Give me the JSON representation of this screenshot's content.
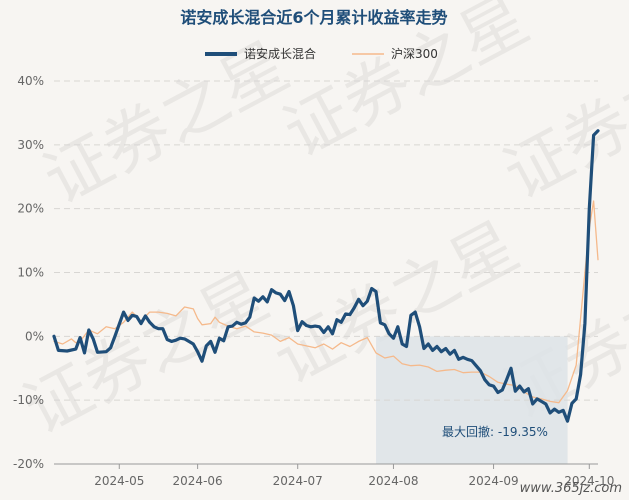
{
  "chart_data": {
    "type": "line",
    "title": "诺安成长混合近6个月累计收益率走势",
    "xlabel": "",
    "ylabel": "",
    "x_ticks": [
      "2024-05",
      "2024-06",
      "2024-07",
      "2024-08",
      "2024-09",
      "2024-10"
    ],
    "y_ticks": [
      "40%",
      "30%",
      "20%",
      "10%",
      "0%",
      "-10%",
      "-20%"
    ],
    "ylim": [
      -20,
      40
    ],
    "legend_position": "top-center",
    "grid": true,
    "colors": {
      "fund": "#1f4e79",
      "index": "#f5b98b",
      "drawdown": "#dde3e8",
      "grid": "#d8d6d3"
    },
    "series": [
      {
        "name": "诺安成长混合",
        "points": [
          [
            0,
            0
          ],
          [
            1,
            -2.2
          ],
          [
            3,
            -2.3
          ],
          [
            5,
            -2
          ],
          [
            6,
            -0.2
          ],
          [
            7,
            -2.6
          ],
          [
            8,
            1
          ],
          [
            9,
            -0.4
          ],
          [
            10,
            -2.5
          ],
          [
            12,
            -2.4
          ],
          [
            13,
            -1.8
          ],
          [
            14,
            0
          ],
          [
            16,
            3.8
          ],
          [
            17,
            2.5
          ],
          [
            18,
            3.3
          ],
          [
            19,
            3.1
          ],
          [
            20,
            2
          ],
          [
            21,
            3.2
          ],
          [
            22,
            2.2
          ],
          [
            23,
            1.5
          ],
          [
            24,
            1.2
          ],
          [
            25,
            1.2
          ],
          [
            26,
            -0.5
          ],
          [
            27,
            -0.8
          ],
          [
            28,
            -0.6
          ],
          [
            29,
            -0.3
          ],
          [
            30,
            -0.4
          ],
          [
            31,
            -0.8
          ],
          [
            32,
            -1.2
          ],
          [
            33,
            -2.4
          ],
          [
            34,
            -3.9
          ],
          [
            35,
            -1.5
          ],
          [
            36,
            -0.8
          ],
          [
            37,
            -2.5
          ],
          [
            38,
            -0.3
          ],
          [
            39,
            -0.7
          ],
          [
            40,
            1.5
          ],
          [
            41,
            1.6
          ],
          [
            42,
            2.2
          ],
          [
            43,
            1.9
          ],
          [
            44,
            2.1
          ],
          [
            45,
            3
          ],
          [
            46,
            6
          ],
          [
            47,
            5.5
          ],
          [
            48,
            6.2
          ],
          [
            49,
            5.4
          ],
          [
            50,
            7.3
          ],
          [
            51,
            6.8
          ],
          [
            52,
            6.6
          ],
          [
            53,
            5.6
          ],
          [
            54,
            7
          ],
          [
            55,
            4.8
          ],
          [
            56,
            0.9
          ],
          [
            57,
            2.3
          ],
          [
            58,
            1.7
          ],
          [
            59,
            1.5
          ],
          [
            60,
            1.6
          ],
          [
            61,
            1.5
          ],
          [
            62,
            0.6
          ],
          [
            63,
            1.5
          ],
          [
            64,
            0.4
          ],
          [
            65,
            2.6
          ],
          [
            66,
            2.2
          ],
          [
            67,
            3.5
          ],
          [
            68,
            3.4
          ],
          [
            69,
            4.5
          ],
          [
            70,
            5.8
          ],
          [
            71,
            4.8
          ],
          [
            72,
            5.5
          ],
          [
            73,
            7.5
          ],
          [
            74,
            7
          ],
          [
            75,
            2.1
          ],
          [
            76,
            1.8
          ],
          [
            77,
            0.4
          ],
          [
            78,
            -0.3
          ],
          [
            79,
            1.5
          ],
          [
            80,
            -1.2
          ],
          [
            81,
            -1.6
          ],
          [
            82,
            3.3
          ],
          [
            83,
            3.8
          ],
          [
            84,
            1.5
          ],
          [
            85,
            -1.9
          ],
          [
            86,
            -1.2
          ],
          [
            87,
            -2.2
          ],
          [
            88,
            -1.6
          ],
          [
            89,
            -2.4
          ],
          [
            90,
            -1.9
          ],
          [
            91,
            -2.8
          ],
          [
            92,
            -2.2
          ],
          [
            93,
            -3.6
          ],
          [
            94,
            -3.3
          ],
          [
            95,
            -3.6
          ],
          [
            96,
            -3.8
          ],
          [
            97,
            -4.6
          ],
          [
            98,
            -5.4
          ],
          [
            99,
            -6.8
          ],
          [
            100,
            -7.6
          ],
          [
            101,
            -7.8
          ],
          [
            102,
            -8.8
          ],
          [
            103,
            -8.4
          ],
          [
            104,
            -6.8
          ],
          [
            105,
            -5
          ],
          [
            106,
            -8.6
          ],
          [
            107,
            -7.8
          ],
          [
            108,
            -8.7
          ],
          [
            109,
            -8.2
          ],
          [
            110,
            -10.6
          ],
          [
            111,
            -9.8
          ],
          [
            112,
            -10.2
          ],
          [
            113,
            -10.6
          ],
          [
            114,
            -12
          ],
          [
            115,
            -11.4
          ],
          [
            116,
            -11.9
          ],
          [
            117,
            -11.6
          ],
          [
            118,
            -13.3
          ],
          [
            119,
            -10.5
          ],
          [
            120,
            -9.8
          ],
          [
            121,
            -6
          ],
          [
            122,
            2
          ],
          [
            123,
            20
          ],
          [
            124,
            31.5
          ],
          [
            125,
            32.2
          ]
        ]
      },
      {
        "name": "沪深300",
        "points": [
          [
            0,
            -0.8
          ],
          [
            2,
            -1.2
          ],
          [
            4,
            -0.4
          ],
          [
            5,
            -1
          ],
          [
            6,
            -0.8
          ],
          [
            8,
            1
          ],
          [
            10,
            0.4
          ],
          [
            12,
            1.5
          ],
          [
            14,
            1.2
          ],
          [
            16,
            2.2
          ],
          [
            18,
            3.8
          ],
          [
            20,
            2.4
          ],
          [
            22,
            3.8
          ],
          [
            24,
            3.8
          ],
          [
            26,
            3.6
          ],
          [
            28,
            3.2
          ],
          [
            30,
            4.6
          ],
          [
            32,
            4.3
          ],
          [
            33,
            2.8
          ],
          [
            34,
            1.8
          ],
          [
            36,
            2
          ],
          [
            37,
            3
          ],
          [
            38,
            2.2
          ],
          [
            40,
            1.6
          ],
          [
            42,
            1.2
          ],
          [
            44,
            1.6
          ],
          [
            46,
            0.7
          ],
          [
            48,
            0.5
          ],
          [
            50,
            0.2
          ],
          [
            52,
            -0.8
          ],
          [
            54,
            -0.2
          ],
          [
            56,
            -1.2
          ],
          [
            58,
            -1.5
          ],
          [
            60,
            -1.8
          ],
          [
            62,
            -1.2
          ],
          [
            64,
            -2
          ],
          [
            66,
            -1
          ],
          [
            68,
            -1.6
          ],
          [
            70,
            -0.8
          ],
          [
            72,
            -0.2
          ],
          [
            74,
            -2.6
          ],
          [
            76,
            -3.4
          ],
          [
            78,
            -3.1
          ],
          [
            80,
            -4.3
          ],
          [
            82,
            -4.6
          ],
          [
            84,
            -4.5
          ],
          [
            86,
            -4.8
          ],
          [
            88,
            -5.5
          ],
          [
            90,
            -5.3
          ],
          [
            92,
            -5.2
          ],
          [
            94,
            -5.7
          ],
          [
            96,
            -5.6
          ],
          [
            98,
            -5.6
          ],
          [
            100,
            -6.3
          ],
          [
            102,
            -7.2
          ],
          [
            104,
            -7.5
          ],
          [
            106,
            -7.7
          ],
          [
            108,
            -8.7
          ],
          [
            110,
            -9.5
          ],
          [
            112,
            -9.8
          ],
          [
            114,
            -10.2
          ],
          [
            116,
            -10.4
          ],
          [
            118,
            -8.5
          ],
          [
            120,
            -4.5
          ],
          [
            122,
            10
          ],
          [
            123,
            17
          ],
          [
            124,
            21.2
          ],
          [
            125,
            12
          ]
        ]
      }
    ],
    "annotation": {
      "label": "最大回撤: -19.35%",
      "drawdown_start_x": 74,
      "drawdown_end_x": 118
    },
    "watermark": "证券之星",
    "footer": "www.365jz.com"
  }
}
